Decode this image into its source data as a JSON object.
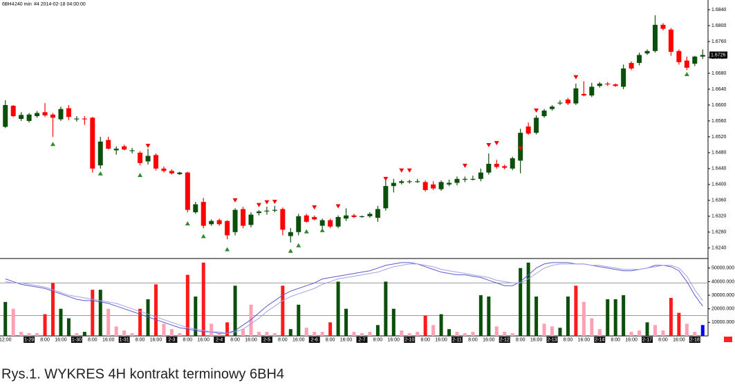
{
  "header": [
    "6BH4",
    "240 min",
    "#4 2014-02-18 04:00:00"
  ],
  "caption": "Rys.1. WYKRES 4H kontrakt terminowy 6BH4",
  "chart_data": {
    "type": "candlestick",
    "categories": [
      "12:00",
      null,
      null,
      "1-29",
      null,
      "8:00",
      null,
      "16:00",
      null,
      "1-30",
      null,
      "8:00",
      null,
      "16:00",
      null,
      "1-31",
      null,
      "8:00",
      null,
      "16:00",
      null,
      "2-3",
      null,
      "8:00",
      null,
      "16:00",
      null,
      "2-4",
      null,
      "8:00",
      null,
      "16:00",
      null,
      "2-5",
      null,
      "8:00",
      null,
      "16:00",
      null,
      "2-6",
      null,
      "8:00",
      null,
      "16:00",
      null,
      "2-7",
      null,
      "8:00",
      null,
      "16:00",
      null,
      "2-10",
      null,
      "8:00",
      null,
      "16:00",
      null,
      "2-11",
      null,
      "8:00",
      null,
      "16:00",
      null,
      "2-12",
      null,
      "8:00",
      null,
      "16:00",
      null,
      "2-13",
      null,
      "8:00",
      null,
      "16:00",
      null,
      "2-14",
      null,
      "8:00",
      null,
      "16:00",
      null,
      "2-17",
      null,
      "8:00",
      null,
      "16:00",
      null,
      "2-18",
      null
    ],
    "ohlc": [
      [
        1.6545,
        1.6612,
        1.6542,
        1.66
      ],
      [
        1.6598,
        1.66,
        1.657,
        1.6572
      ],
      [
        1.6565,
        1.6582,
        1.656,
        1.6575
      ],
      [
        1.656,
        1.658,
        1.6556,
        1.6576
      ],
      [
        1.6572,
        1.6585,
        1.6568,
        1.658
      ],
      [
        1.6582,
        1.6605,
        1.657,
        1.6574
      ],
      [
        1.6576,
        1.658,
        1.652,
        1.6568
      ],
      [
        1.6564,
        1.6596,
        1.656,
        1.659
      ],
      [
        1.6592,
        1.66,
        1.6562,
        1.657
      ],
      [
        1.6566,
        1.6572,
        1.6558,
        1.6566
      ],
      [
        1.6566,
        1.6572,
        1.655,
        1.6564
      ],
      [
        1.6568,
        1.657,
        1.643,
        1.644
      ],
      [
        1.6448,
        1.652,
        1.644,
        1.6508
      ],
      [
        1.6512,
        1.652,
        1.6488,
        1.649
      ],
      [
        1.6486,
        1.6496,
        1.6475,
        1.649
      ],
      [
        1.6496,
        1.65,
        1.6486,
        1.6488
      ],
      [
        1.6485,
        1.6492,
        1.6478,
        1.6486
      ],
      [
        1.648,
        1.6484,
        1.6448,
        1.6454
      ],
      [
        1.6458,
        1.649,
        1.645,
        1.6472
      ],
      [
        1.6474,
        1.6478,
        1.6435,
        1.644
      ],
      [
        1.644,
        1.6445,
        1.643,
        1.6434
      ],
      [
        1.6434,
        1.6438,
        1.6425,
        1.6428
      ],
      [
        1.6426,
        1.6432,
        1.6424,
        1.643
      ],
      [
        1.643,
        1.6432,
        1.633,
        1.6336
      ],
      [
        1.633,
        1.6356,
        1.6326,
        1.635
      ],
      [
        1.6356,
        1.6366,
        1.629,
        1.6296
      ],
      [
        1.63,
        1.6312,
        1.6296,
        1.6308
      ],
      [
        1.631,
        1.6314,
        1.6296,
        1.63
      ],
      [
        1.6308,
        1.631,
        1.6262,
        1.6272
      ],
      [
        1.628,
        1.634,
        1.6272,
        1.6336
      ],
      [
        1.6338,
        1.6344,
        1.629,
        1.6296
      ],
      [
        1.6298,
        1.633,
        1.6292,
        1.6324
      ],
      [
        1.6328,
        1.6336,
        1.6322,
        1.6332
      ],
      [
        1.6334,
        1.6344,
        1.6324,
        1.6334
      ],
      [
        1.6336,
        1.6346,
        1.633,
        1.6336
      ],
      [
        1.6338,
        1.6342,
        1.6272,
        1.6286
      ],
      [
        1.627,
        1.629,
        1.6254,
        1.628
      ],
      [
        1.628,
        1.6326,
        1.6272,
        1.632
      ],
      [
        1.6322,
        1.6326,
        1.6304,
        1.6306
      ],
      [
        1.6318,
        1.6322,
        1.631,
        1.6312
      ],
      [
        1.6296,
        1.6314,
        1.6286,
        1.631
      ],
      [
        1.631,
        1.6314,
        1.629,
        1.6294
      ],
      [
        1.6294,
        1.6322,
        1.629,
        1.6318
      ],
      [
        1.6314,
        1.634,
        1.6308,
        1.6322
      ],
      [
        1.6322,
        1.6326,
        1.6316,
        1.6318
      ],
      [
        1.6318,
        1.6322,
        1.6316,
        1.632
      ],
      [
        1.632,
        1.633,
        1.6316,
        1.6326
      ],
      [
        1.6316,
        1.6346,
        1.6306,
        1.6338
      ],
      [
        1.634,
        1.641,
        1.6334,
        1.6396
      ],
      [
        1.6396,
        1.6414,
        1.638,
        1.6404
      ],
      [
        1.6404,
        1.6412,
        1.64,
        1.6408
      ],
      [
        1.6406,
        1.6412,
        1.6402,
        1.6408
      ],
      [
        1.6408,
        1.6414,
        1.6404,
        1.6408
      ],
      [
        1.6406,
        1.641,
        1.6382,
        1.6386
      ],
      [
        1.64,
        1.6408,
        1.6386,
        1.639
      ],
      [
        1.6388,
        1.641,
        1.6384,
        1.6406
      ],
      [
        1.64,
        1.6412,
        1.6396,
        1.6404
      ],
      [
        1.6404,
        1.642,
        1.6398,
        1.6414
      ],
      [
        1.6414,
        1.642,
        1.6406,
        1.6414
      ],
      [
        1.6414,
        1.6422,
        1.641,
        1.6414
      ],
      [
        1.6414,
        1.644,
        1.6408,
        1.643
      ],
      [
        1.643,
        1.6478,
        1.6425,
        1.6452
      ],
      [
        1.6452,
        1.6462,
        1.644,
        1.6444
      ],
      [
        1.6446,
        1.645,
        1.6438,
        1.6442
      ],
      [
        1.644,
        1.647,
        1.6436,
        1.6466
      ],
      [
        1.646,
        1.654,
        1.6428,
        1.653
      ],
      [
        1.6546,
        1.6556,
        1.6525,
        1.6528
      ],
      [
        1.653,
        1.6574,
        1.6526,
        1.6568
      ],
      [
        1.6572,
        1.659,
        1.6568,
        1.6586
      ],
      [
        1.659,
        1.66,
        1.6586,
        1.6596
      ],
      [
        1.6604,
        1.6612,
        1.66,
        1.6606
      ],
      [
        1.6614,
        1.6618,
        1.66,
        1.6604
      ],
      [
        1.6604,
        1.6654,
        1.66,
        1.6642
      ],
      [
        1.6628,
        1.666,
        1.6622,
        1.6624
      ],
      [
        1.6624,
        1.6656,
        1.662,
        1.6646
      ],
      [
        1.6648,
        1.6658,
        1.6644,
        1.6654
      ],
      [
        1.6654,
        1.6658,
        1.6648,
        1.6652
      ],
      [
        1.6652,
        1.6654,
        1.6646,
        1.6648
      ],
      [
        1.6646,
        1.6702,
        1.664,
        1.6692
      ],
      [
        1.6706,
        1.671,
        1.6688,
        1.6692
      ],
      [
        1.6706,
        1.6732,
        1.67,
        1.6726
      ],
      [
        1.673,
        1.674,
        1.6726,
        1.6736
      ],
      [
        1.6736,
        1.6826,
        1.6732,
        1.6802
      ],
      [
        1.6802,
        1.6806,
        1.6788,
        1.6792
      ],
      [
        1.679,
        1.6794,
        1.6724,
        1.6734
      ],
      [
        1.6736,
        1.674,
        1.6702,
        1.6708
      ],
      [
        1.6712,
        1.6722,
        1.6688,
        1.6694
      ],
      [
        1.6704,
        1.6724,
        1.6698,
        1.6722
      ],
      [
        1.6722,
        1.674,
        1.6716,
        1.6726
      ]
    ],
    "up_color": "#0b4f0b",
    "down_color": "#ff0000",
    "ylim": [
      1.6217,
      1.6861
    ],
    "yticks": [
      {
        "value": 1.624,
        "label": "1.6240"
      },
      {
        "value": 1.628,
        "label": "1.6280"
      },
      {
        "value": 1.632,
        "label": "1.6320"
      },
      {
        "value": 1.636,
        "label": "1.6360"
      },
      {
        "value": 1.64,
        "label": "1.6400"
      },
      {
        "value": 1.644,
        "label": "1.6440"
      },
      {
        "value": 1.648,
        "label": "1.6480"
      },
      {
        "value": 1.652,
        "label": "1.6520"
      },
      {
        "value": 1.656,
        "label": "1.6560"
      },
      {
        "value": 1.66,
        "label": "1.6600"
      },
      {
        "value": 1.664,
        "label": "1.6640"
      },
      {
        "value": 1.668,
        "label": "1.6680"
      },
      {
        "value": 1.672,
        "label": "1.6720"
      },
      {
        "value": 1.676,
        "label": "1.6760"
      },
      {
        "value": 1.68,
        "label": "1.6800"
      },
      {
        "value": 1.684,
        "label": "1.6840"
      }
    ],
    "last_price": {
      "value": 1.6726,
      "label": "1.6726"
    },
    "buy_color": "#2e8b2e",
    "sell_color": "#ff0000",
    "buy_signals": [
      null,
      null,
      null,
      null,
      null,
      null,
      1.6502,
      null,
      null,
      null,
      null,
      null,
      1.6428,
      null,
      null,
      null,
      null,
      1.6424,
      null,
      null,
      null,
      null,
      null,
      1.6302,
      null,
      1.627,
      null,
      null,
      1.6237,
      null,
      null,
      null,
      null,
      null,
      null,
      null,
      1.6233,
      1.6247,
      1.6282,
      null,
      1.6285,
      null,
      null,
      null,
      null,
      null,
      null,
      null,
      null,
      null,
      null,
      null,
      null,
      null,
      null,
      null,
      null,
      null,
      null,
      null,
      null,
      null,
      null,
      null,
      null,
      null,
      null,
      null,
      null,
      null,
      null,
      null,
      null,
      null,
      null,
      null,
      null,
      null,
      null,
      null,
      null,
      null,
      null,
      null,
      null,
      null,
      1.6678,
      null,
      null
    ],
    "sell_signals": [
      null,
      null,
      null,
      null,
      null,
      null,
      null,
      null,
      null,
      null,
      null,
      null,
      null,
      null,
      null,
      null,
      null,
      null,
      1.6497,
      null,
      null,
      null,
      null,
      null,
      null,
      null,
      null,
      null,
      null,
      1.636,
      null,
      null,
      1.6348,
      1.6355,
      1.6356,
      null,
      null,
      null,
      null,
      1.6342,
      null,
      null,
      1.6345,
      null,
      null,
      null,
      null,
      null,
      1.6414,
      null,
      1.6435,
      1.6435,
      null,
      null,
      null,
      null,
      null,
      null,
      1.6447,
      null,
      null,
      1.6499,
      1.6504,
      null,
      null,
      1.649,
      null,
      1.6586,
      null,
      null,
      null,
      null,
      1.667,
      null,
      null,
      null,
      null,
      null,
      null,
      null,
      null,
      null,
      null,
      null,
      null,
      null,
      null,
      null,
      null
    ],
    "volume": {
      "values": [
        25000,
        20000,
        3000,
        2000,
        2000,
        16000,
        39000,
        20000,
        13000,
        2000,
        3000,
        34000,
        34000,
        20000,
        7000,
        4000,
        2000,
        20000,
        27000,
        38000,
        9000,
        5000,
        2000,
        45000,
        29000,
        54000,
        9000,
        2000,
        10000,
        37000,
        5000,
        23000,
        3000,
        3000,
        2000,
        37000,
        5000,
        23000,
        6000,
        3000,
        3000,
        10000,
        40000,
        20000,
        3000,
        2000,
        3000,
        8000,
        40000,
        20000,
        4000,
        2000,
        3000,
        15000,
        8000,
        16000,
        5000,
        3000,
        2000,
        3000,
        30000,
        29000,
        7000,
        3000,
        2000,
        50000,
        54000,
        29000,
        9000,
        7000,
        6000,
        29000,
        37000,
        25000,
        13000,
        5000,
        27000,
        27000,
        30000,
        3000,
        4000,
        10000,
        8000,
        4000,
        28000,
        17000,
        9000,
        3000,
        8000
      ],
      "colors": [
        "#0b4f0b",
        "#ffa0b4",
        "#ffa0b4",
        "#ffa0b4",
        "#ffa0b4",
        "#ff1a1a",
        "#ff1a1a",
        "#0b4f0b",
        "#0b4f0b",
        "#ffa0b4",
        "#0b4f0b",
        "#ff1a1a",
        "#0b4f0b",
        "#ffa0b4",
        "#ffa0b4",
        "#ffa0b4",
        "#ffa0b4",
        "#ff1a1a",
        "#0b4f0b",
        "#ff1a1a",
        "#ffa0b4",
        "#ffa0b4",
        "#ffa0b4",
        "#ff1a1a",
        "#0b4f0b",
        "#ff1a1a",
        "#ffa0b4",
        "#ffa0b4",
        "#ff1a1a",
        "#0b4f0b",
        "#ffa0b4",
        "#ffa0b4",
        "#ffa0b4",
        "#ffa0b4",
        "#ffa0b4",
        "#ff1a1a",
        "#0b4f0b",
        "#0b4f0b",
        "#ffa0b4",
        "#ffa0b4",
        "#ffa0b4",
        "#ff1a1a",
        "#0b4f0b",
        "#0b4f0b",
        "#ffa0b4",
        "#ffa0b4",
        "#ffa0b4",
        "#0b4f0b",
        "#0b4f0b",
        "#0b4f0b",
        "#ffa0b4",
        "#ffa0b4",
        "#ffa0b4",
        "#ff1a1a",
        "#ffa0b4",
        "#0b4f0b",
        "#0b4f0b",
        "#ffa0b4",
        "#ffa0b4",
        "#ffa0b4",
        "#0b4f0b",
        "#0b4f0b",
        "#ffa0b4",
        "#ffa0b4",
        "#ffa0b4",
        "#0b4f0b",
        "#0b4f0b",
        "#0b4f0b",
        "#ffa0b4",
        "#ffa0b4",
        "#0b4f0b",
        "#0b4f0b",
        "#ff1a1a",
        "#ffa0b4",
        "#ffa0b4",
        "#ffa0b4",
        "#0b4f0b",
        "#0b4f0b",
        "#0b4f0b",
        "#ffa0b4",
        "#ffa0b4",
        "#0b4f0b",
        "#ffa0b4",
        "#ffa0b4",
        "#ff1a1a",
        "#ff1a1a",
        "#ffa0b4",
        "#ffa0b4",
        "#0000ff"
      ],
      "ylim": [
        0,
        56000
      ],
      "yticks": [
        {
          "value": 10000,
          "label": "10000.000"
        },
        {
          "value": 20000,
          "label": "20000.000"
        },
        {
          "value": 30000,
          "label": "30000.000"
        },
        {
          "value": 40000,
          "label": "40000.000"
        },
        {
          "value": 50000,
          "label": "50000.000"
        }
      ],
      "levels": [
        39000,
        15000
      ],
      "series": [
        {
          "color": "#5a5acd",
          "values": [
            42000,
            40000,
            38000,
            37000,
            36000,
            35000,
            33000,
            31000,
            29000,
            27000,
            26000,
            26000,
            25000,
            24000,
            22000,
            20000,
            18000,
            16000,
            14000,
            12000,
            10000,
            8000,
            6000,
            5000,
            4000,
            3000,
            3000,
            2000,
            2000,
            4000,
            8000,
            12000,
            17000,
            22000,
            26000,
            30000,
            33000,
            35000,
            37000,
            39000,
            42000,
            43000,
            44000,
            45000,
            46000,
            47000,
            48000,
            50000,
            52000,
            53000,
            54000,
            54000,
            53000,
            51000,
            49000,
            47000,
            46000,
            45000,
            45000,
            44000,
            43000,
            41000,
            39000,
            37000,
            37000,
            40000,
            45000,
            50000,
            53000,
            54000,
            54000,
            54000,
            53000,
            53000,
            52000,
            51000,
            50000,
            49000,
            48000,
            48000,
            49000,
            50000,
            52000,
            52000,
            51000,
            48000,
            40000,
            30000,
            22000
          ]
        },
        {
          "color": "#a0a0ea",
          "values": [
            40000,
            39000,
            39000,
            38000,
            37000,
            36000,
            34000,
            32000,
            30000,
            29000,
            28000,
            27000,
            26000,
            25000,
            24000,
            22000,
            20000,
            18000,
            16000,
            14000,
            12000,
            10000,
            8000,
            6000,
            5000,
            4000,
            3000,
            3000,
            2000,
            3000,
            5000,
            9000,
            13000,
            18000,
            22000,
            26000,
            29000,
            31000,
            33000,
            35000,
            38000,
            40000,
            42000,
            43000,
            44000,
            45000,
            46000,
            47000,
            49000,
            51000,
            52000,
            53000,
            53000,
            52000,
            51000,
            49000,
            48000,
            47000,
            46000,
            45000,
            44000,
            43000,
            41000,
            40000,
            39000,
            39000,
            42000,
            46000,
            50000,
            52000,
            53000,
            53000,
            53000,
            53000,
            52000,
            52000,
            51000,
            50000,
            49000,
            49000,
            49000,
            50000,
            51000,
            52000,
            52000,
            50000,
            44000,
            34000,
            26000
          ]
        }
      ]
    }
  }
}
